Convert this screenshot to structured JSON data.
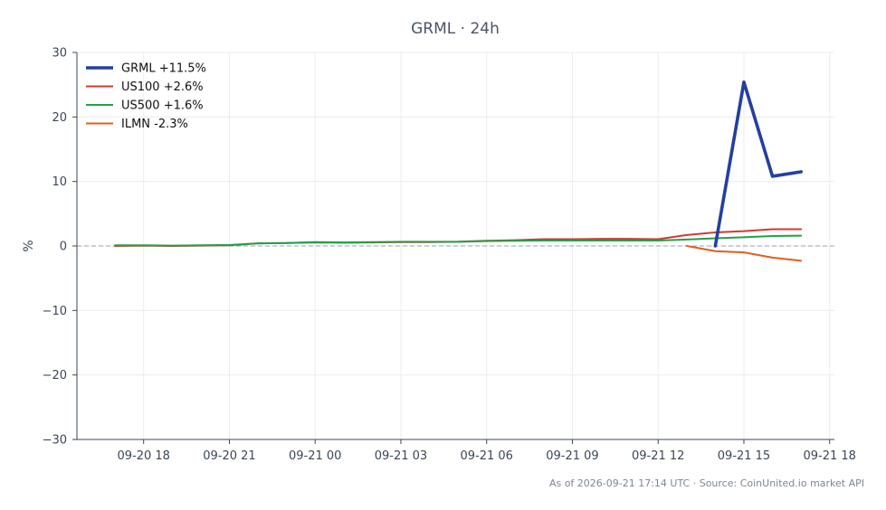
{
  "chart_data": {
    "type": "line",
    "title": "GRML · 24h",
    "xlabel": "",
    "ylabel": "%",
    "xlim": [
      "2026-09-20 15:40",
      "2026-09-21 18:10"
    ],
    "ylim": [
      -30,
      30
    ],
    "x_ticks": [
      {
        "at": "2026-09-20 18:00",
        "label": "09-20 18"
      },
      {
        "at": "2026-09-20 21:00",
        "label": "09-20 21"
      },
      {
        "at": "2026-09-21 00:00",
        "label": "09-21 00"
      },
      {
        "at": "2026-09-21 03:00",
        "label": "09-21 03"
      },
      {
        "at": "2026-09-21 06:00",
        "label": "09-21 06"
      },
      {
        "at": "2026-09-21 09:00",
        "label": "09-21 09"
      },
      {
        "at": "2026-09-21 12:00",
        "label": "09-21 12"
      },
      {
        "at": "2026-09-21 15:00",
        "label": "09-21 15"
      },
      {
        "at": "2026-09-21 18:00",
        "label": "09-21 18"
      }
    ],
    "y_ticks": [
      {
        "value": 30,
        "label": "30"
      },
      {
        "value": 20,
        "label": "20"
      },
      {
        "value": 10,
        "label": "10"
      },
      {
        "value": 0,
        "label": "0"
      },
      {
        "value": -10,
        "label": "−10"
      },
      {
        "value": -20,
        "label": "−20"
      },
      {
        "value": -30,
        "label": "−30"
      }
    ],
    "grid": true,
    "zero_line": true,
    "legend": "top-left",
    "series": [
      {
        "name": "GRML +11.5%",
        "color": "#2340a0",
        "emphasis": true,
        "points": [
          [
            "2026-09-21 14:00",
            0.0
          ],
          [
            "2026-09-21 15:00",
            25.4
          ],
          [
            "2026-09-21 16:00",
            10.8
          ],
          [
            "2026-09-21 17:00",
            11.5
          ]
        ]
      },
      {
        "name": "US100 +2.6%",
        "color": "#d03a2f",
        "emphasis": false,
        "points": [
          [
            "2026-09-20 17:00",
            0.0
          ],
          [
            "2026-09-20 18:00",
            0.05
          ],
          [
            "2026-09-20 19:00",
            0.0
          ],
          [
            "2026-09-20 20:00",
            0.05
          ],
          [
            "2026-09-20 21:00",
            0.1
          ],
          [
            "2026-09-20 22:00",
            0.4
          ],
          [
            "2026-09-20 23:00",
            0.45
          ],
          [
            "2026-09-21 00:00",
            0.55
          ],
          [
            "2026-09-21 01:00",
            0.5
          ],
          [
            "2026-09-21 02:00",
            0.55
          ],
          [
            "2026-09-21 03:00",
            0.6
          ],
          [
            "2026-09-21 04:00",
            0.6
          ],
          [
            "2026-09-21 05:00",
            0.65
          ],
          [
            "2026-09-21 06:00",
            0.8
          ],
          [
            "2026-09-21 07:00",
            0.9
          ],
          [
            "2026-09-21 08:00",
            1.05
          ],
          [
            "2026-09-21 09:00",
            1.05
          ],
          [
            "2026-09-21 10:00",
            1.1
          ],
          [
            "2026-09-21 11:00",
            1.1
          ],
          [
            "2026-09-21 12:00",
            1.05
          ],
          [
            "2026-09-21 13:00",
            1.7
          ],
          [
            "2026-09-21 14:00",
            2.1
          ],
          [
            "2026-09-21 15:00",
            2.3
          ],
          [
            "2026-09-21 16:00",
            2.6
          ],
          [
            "2026-09-21 17:00",
            2.6
          ]
        ]
      },
      {
        "name": "US500 +1.6%",
        "color": "#22a04b",
        "emphasis": false,
        "points": [
          [
            "2026-09-20 17:00",
            0.1
          ],
          [
            "2026-09-20 18:00",
            0.1
          ],
          [
            "2026-09-20 19:00",
            0.05
          ],
          [
            "2026-09-20 20:00",
            0.1
          ],
          [
            "2026-09-20 21:00",
            0.15
          ],
          [
            "2026-09-20 22:00",
            0.4
          ],
          [
            "2026-09-20 23:00",
            0.45
          ],
          [
            "2026-09-21 00:00",
            0.6
          ],
          [
            "2026-09-21 01:00",
            0.55
          ],
          [
            "2026-09-21 02:00",
            0.6
          ],
          [
            "2026-09-21 03:00",
            0.65
          ],
          [
            "2026-09-21 04:00",
            0.65
          ],
          [
            "2026-09-21 05:00",
            0.65
          ],
          [
            "2026-09-21 06:00",
            0.75
          ],
          [
            "2026-09-21 07:00",
            0.8
          ],
          [
            "2026-09-21 08:00",
            0.85
          ],
          [
            "2026-09-21 09:00",
            0.85
          ],
          [
            "2026-09-21 10:00",
            0.85
          ],
          [
            "2026-09-21 11:00",
            0.85
          ],
          [
            "2026-09-21 12:00",
            0.85
          ],
          [
            "2026-09-21 13:00",
            1.0
          ],
          [
            "2026-09-21 14:00",
            1.2
          ],
          [
            "2026-09-21 15:00",
            1.35
          ],
          [
            "2026-09-21 16:00",
            1.55
          ],
          [
            "2026-09-21 17:00",
            1.6
          ]
        ]
      },
      {
        "name": "ILMN -2.3%",
        "color": "#e0601c",
        "emphasis": false,
        "points": [
          [
            "2026-09-21 13:00",
            0.0
          ],
          [
            "2026-09-21 14:00",
            -0.8
          ],
          [
            "2026-09-21 15:00",
            -1.0
          ],
          [
            "2026-09-21 16:00",
            -1.8
          ],
          [
            "2026-09-21 17:00",
            -2.3
          ]
        ]
      }
    ],
    "footnote": "As of 2026-09-21 17:14 UTC · Source: CoinUnited.io market API"
  },
  "colors": {
    "axis": "#3b4758",
    "grid": "#e9ecef",
    "zero_line": "#9aa3ad",
    "title": "#4a5566",
    "footnote": "#7d8794"
  }
}
